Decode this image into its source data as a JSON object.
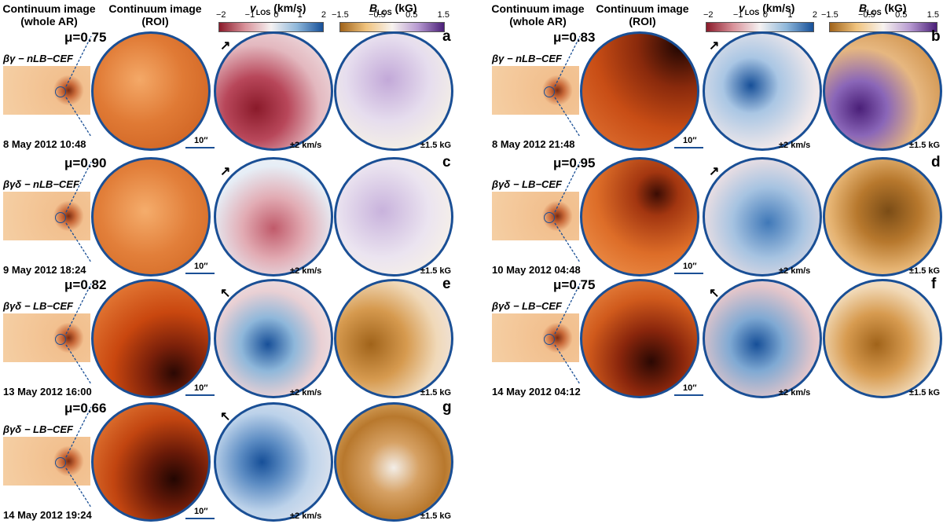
{
  "headers": {
    "whole_ar": "Continuum image\n(whole AR)",
    "roi": "Continuum image\n(ROI)",
    "vlos_title": "vLOS (km/s)",
    "blos_title": "BLOS (kG)",
    "vlos_ticks": [
      "−2",
      "−1",
      "0",
      "1",
      "2"
    ],
    "blos_ticks": [
      "−1.5",
      "−0.5",
      "0.5",
      "1.5"
    ]
  },
  "colors": {
    "frame": "#1a4f95",
    "vlos_map": [
      "#8a1a2a",
      "#d9929a",
      "#f5f2f2",
      "#8eb7da",
      "#164f98"
    ],
    "blos_map": [
      "#a0631a",
      "#f0c37e",
      "#f7f3ef",
      "#b79ad1",
      "#4a1f78"
    ],
    "continuum": [
      "#3a0d04",
      "#c0410f",
      "#f2a35c"
    ]
  },
  "scale_bar": "10″",
  "vlos_scale": "±2 km/s",
  "blos_scale": "±1.5 kG",
  "panels": [
    {
      "label": "a",
      "mu": "μ=0.75",
      "cls": "βγ − nLB−CEF",
      "date": "8 May 2012 10:48",
      "arrow": "↗"
    },
    {
      "label": "c",
      "mu": "μ=0.90",
      "cls": "βγδ − nLB−CEF",
      "date": "9 May 2012 18:24",
      "arrow": "↗"
    },
    {
      "label": "e",
      "mu": "μ=0.82",
      "cls": "βγδ − LB−CEF",
      "date": "13 May 2012 16:00",
      "arrow": "↖"
    },
    {
      "label": "g",
      "mu": "μ=0.66",
      "cls": "βγδ − LB−CEF",
      "date": "14 May 2012 19:24",
      "arrow": "↖"
    },
    {
      "label": "b",
      "mu": "μ=0.83",
      "cls": "βγ − nLB−CEF",
      "date": "8 May 2012 21:48",
      "arrow": "↗"
    },
    {
      "label": "d",
      "mu": "μ=0.95",
      "cls": "βγδ − LB−CEF",
      "date": "10 May 2012 04:48",
      "arrow": "↗"
    },
    {
      "label": "f",
      "mu": "μ=0.75",
      "cls": "βγδ − LB−CEF",
      "date": "14 May 2012 04:12",
      "arrow": "↖"
    }
  ]
}
